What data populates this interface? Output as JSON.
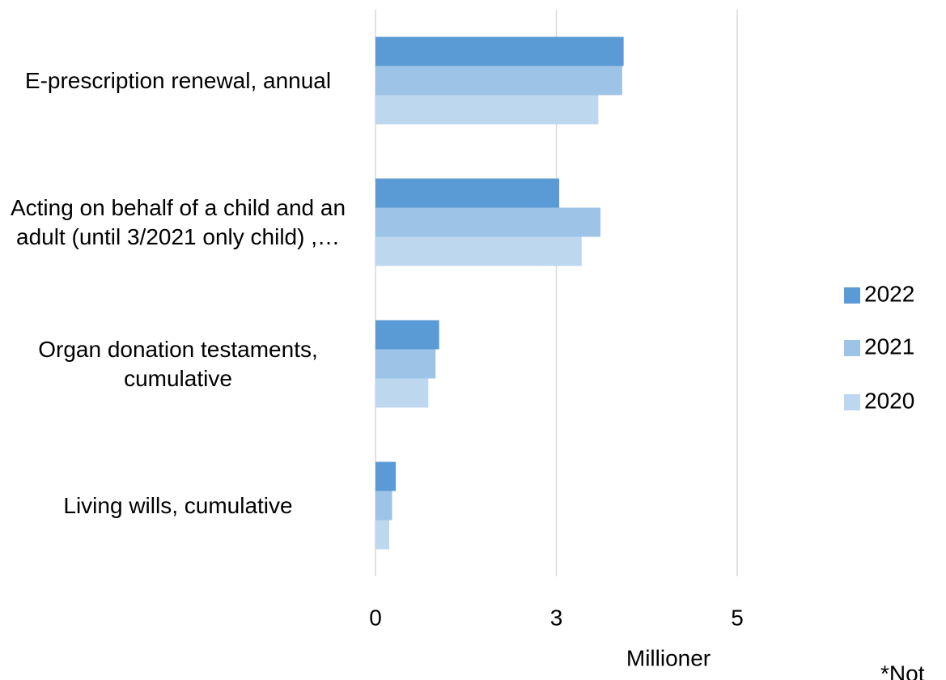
{
  "chart_data": {
    "type": "hbar",
    "categories": [
      "E-prescription renewal, annual",
      "Acting on behalf of a child and an adult (until 3/2021 only child) ,…",
      "Organ donation testaments, cumulative",
      "Living wills, cumulative"
    ],
    "series": [
      {
        "name": "2022",
        "color": "#5b9bd5",
        "values": [
          3.43,
          2.54,
          0.88,
          0.28
        ]
      },
      {
        "name": "2021",
        "color": "#9dc3e6",
        "values": [
          3.41,
          3.11,
          0.83,
          0.23
        ]
      },
      {
        "name": "2020",
        "color": "#bdd7ee",
        "values": [
          3.08,
          2.85,
          0.73,
          0.19
        ]
      }
    ],
    "xlim": [
      0,
      5
    ],
    "xticks": [
      0,
      {
        "value": 2.5,
        "label": "3"
      },
      5
    ],
    "xlabel": "Millioner",
    "grid": true,
    "legend": "right",
    "note": "*Not"
  }
}
